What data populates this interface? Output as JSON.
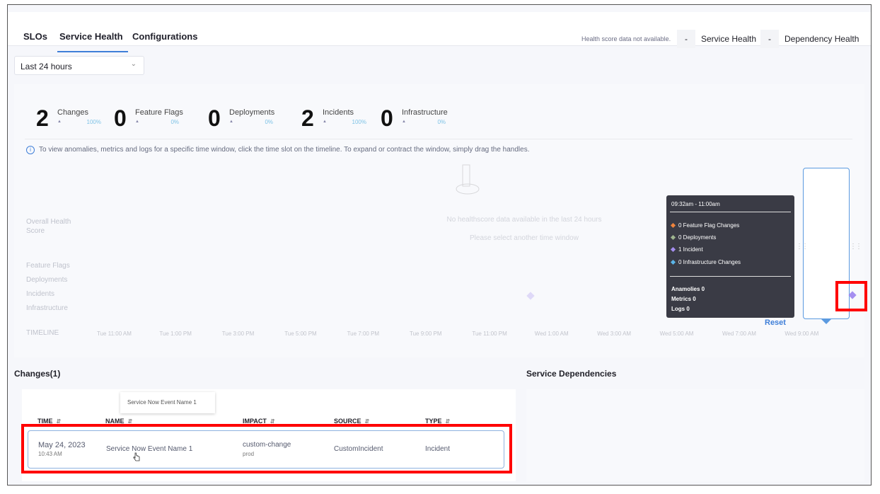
{
  "tabs": [
    {
      "label": "SLOs"
    },
    {
      "label": "Service Health",
      "active": true
    },
    {
      "label": "Configurations"
    }
  ],
  "health": {
    "note": "Health score data not available.",
    "service_value": "-",
    "service_label": "Service Health",
    "dependency_value": "-",
    "dependency_label": "Dependency Health"
  },
  "time_range": {
    "selected": "Last 24 hours"
  },
  "stats": [
    {
      "count": "2",
      "label": "Changes",
      "percent": "100%"
    },
    {
      "count": "0",
      "label": "Feature Flags",
      "percent": "0%"
    },
    {
      "count": "0",
      "label": "Deployments",
      "percent": "0%"
    },
    {
      "count": "2",
      "label": "Incidents",
      "percent": "100%"
    },
    {
      "count": "0",
      "label": "Infrastructure",
      "percent": "0%"
    }
  ],
  "info_text": "To view anomalies, metrics and logs for a specific time window, click the time slot on the timeline. To expand or contract the window, simply drag the handles.",
  "timeline": {
    "rows": [
      "Overall Health Score",
      "Feature Flags",
      "Deployments",
      "Incidents",
      "Infrastructure"
    ],
    "axis_label": "TIMELINE",
    "ticks": [
      "Tue 11:00 AM",
      "Tue 1:00 PM",
      "Tue 3:00 PM",
      "Tue 5:00 PM",
      "Tue 7:00 PM",
      "Tue 9:00 PM",
      "Tue 11:00 PM",
      "Wed 1:00 AM",
      "Wed 3:00 AM",
      "Wed 5:00 AM",
      "Wed 7:00 AM",
      "Wed 9:00 AM"
    ],
    "no_data": "No healthscore data available in the last 24 hours",
    "no_data_hint": "Please select another time window",
    "reset_label": "Reset",
    "tooltip": {
      "range": "09:32am - 11:00am",
      "items": [
        {
          "text": "0 Feature Flag Changes",
          "color": "#f0843c"
        },
        {
          "text": "0 Deployments",
          "color": "#9fb58f"
        },
        {
          "text": "1 Incident",
          "color": "#a58ef0"
        },
        {
          "text": "0 Infrastructure Changes",
          "color": "#5bb5e8"
        }
      ],
      "anomalies": "Anamolies 0",
      "metrics": "Metrics 0",
      "logs": "Logs 0"
    }
  },
  "changes": {
    "title": "Changes(1)",
    "columns": [
      "TIME",
      "NAME",
      "IMPACT",
      "SOURCE",
      "TYPE"
    ],
    "rows": [
      {
        "date": "May 24, 2023",
        "time": "10:43 AM",
        "name": "Service Now Event Name 1",
        "impact": "custom-change",
        "env": "prod",
        "source": "CustomIncident",
        "type": "Incident"
      }
    ],
    "name_tooltip": "Service Now Event Name 1"
  },
  "dependencies": {
    "title": "Service Dependencies"
  }
}
